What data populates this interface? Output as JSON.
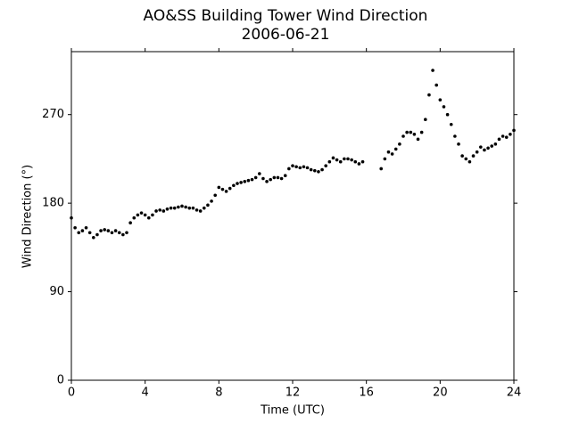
{
  "chart_data": {
    "type": "scatter",
    "title": "AO&SS Building Tower Wind Direction",
    "subtitle": "2006-06-21",
    "x_label": "Time (UTC)",
    "y_label": "Wind Direction (°)",
    "color": "#000000",
    "xlim": [
      0,
      24
    ],
    "xticks": [
      0,
      4,
      8,
      12,
      16,
      20,
      24
    ],
    "ylim": [
      0,
      334
    ],
    "yticks": [
      0,
      90,
      180,
      270
    ],
    "x": [
      0,
      0.2,
      0.4,
      0.6,
      0.8,
      1.0,
      1.2,
      1.4,
      1.6,
      1.8,
      2.0,
      2.2,
      2.4,
      2.6,
      2.8,
      3.0,
      3.2,
      3.4,
      3.6,
      3.8,
      4.0,
      4.2,
      4.4,
      4.6,
      4.8,
      5.0,
      5.2,
      5.4,
      5.6,
      5.8,
      6.0,
      6.2,
      6.4,
      6.6,
      6.8,
      7.0,
      7.2,
      7.4,
      7.6,
      7.8,
      8.0,
      8.2,
      8.4,
      8.6,
      8.8,
      9.0,
      9.2,
      9.4,
      9.6,
      9.8,
      10.0,
      10.2,
      10.4,
      10.6,
      10.8,
      11.0,
      11.2,
      11.4,
      11.6,
      11.8,
      12.0,
      12.2,
      12.4,
      12.6,
      12.8,
      13.0,
      13.2,
      13.4,
      13.6,
      13.8,
      14.0,
      14.2,
      14.4,
      14.6,
      14.8,
      15.0,
      15.2,
      15.4,
      15.6,
      15.8,
      16.8,
      17.0,
      17.2,
      17.4,
      17.6,
      17.8,
      18.0,
      18.2,
      18.4,
      18.6,
      18.8,
      19.0,
      19.2,
      19.4,
      19.6,
      19.8,
      20.0,
      20.2,
      20.4,
      20.6,
      20.8,
      21.0,
      21.2,
      21.4,
      21.6,
      21.8,
      22.0,
      22.2,
      22.4,
      22.6,
      22.8,
      23.0,
      23.2,
      23.4,
      23.6,
      23.8,
      24.0
    ],
    "values": [
      165,
      155,
      150,
      152,
      155,
      150,
      145,
      148,
      152,
      153,
      152,
      150,
      152,
      150,
      148,
      150,
      160,
      165,
      168,
      170,
      168,
      165,
      168,
      172,
      173,
      172,
      174,
      175,
      175,
      176,
      177,
      176,
      175,
      175,
      173,
      172,
      175,
      178,
      182,
      188,
      196,
      194,
      192,
      195,
      198,
      200,
      201,
      202,
      203,
      204,
      206,
      210,
      205,
      202,
      204,
      206,
      206,
      205,
      208,
      215,
      218,
      217,
      216,
      217,
      216,
      214,
      213,
      212,
      214,
      218,
      222,
      226,
      224,
      222,
      225,
      225,
      224,
      222,
      220,
      222,
      215,
      225,
      232,
      230,
      235,
      240,
      248,
      252,
      252,
      250,
      245,
      252,
      265,
      290,
      315,
      300,
      285,
      278,
      270,
      260,
      248,
      240,
      228,
      225,
      222,
      228,
      232,
      237,
      234,
      236,
      238,
      240,
      245,
      248,
      247,
      250,
      254
    ]
  }
}
